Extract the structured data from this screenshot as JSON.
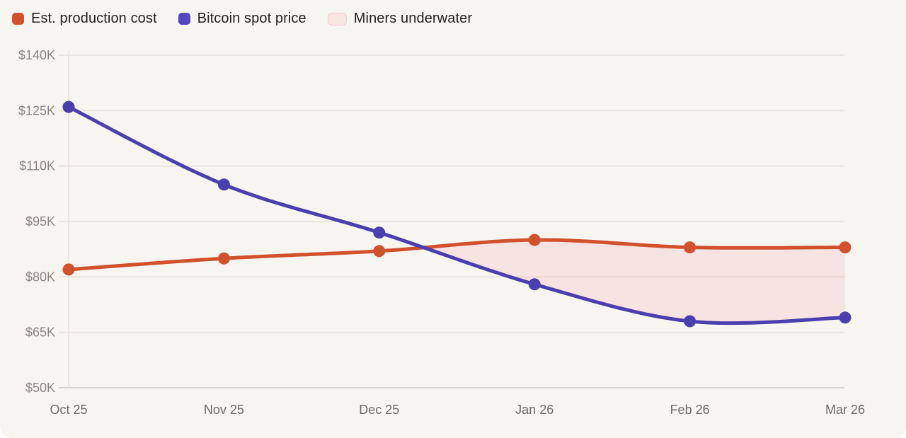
{
  "legend": [
    {
      "label": "Est. production cost",
      "swatch_color": "#d2512d",
      "kind": "series"
    },
    {
      "label": "Bitcoin spot price",
      "swatch_color": "#5447c0",
      "kind": "series"
    },
    {
      "label": "Miners underwater",
      "swatch_color": "#f9e6e3",
      "swatch_border": "#eaccc6",
      "kind": "area"
    }
  ],
  "chart_data": {
    "type": "line",
    "categories": [
      "Oct 25",
      "Nov 25",
      "Dec 25",
      "Jan 26",
      "Feb 26",
      "Mar 26"
    ],
    "series": [
      {
        "name": "Est. production cost",
        "color": "#d2512d",
        "values": [
          82000,
          85000,
          87000,
          90000,
          88000,
          88000
        ]
      },
      {
        "name": "Bitcoin spot price",
        "color": "#4b3eae",
        "values": [
          126000,
          105000,
          92000,
          78000,
          68000,
          69000
        ]
      }
    ],
    "underwater_area": {
      "label": "Miners underwater",
      "fill": "rgba(250,185,192,0.30)",
      "rule": "region between lines where spot price is below production cost"
    },
    "y_ticks": [
      "$140K",
      "$125K",
      "$110K",
      "$95K",
      "$80K",
      "$65K",
      "$50K"
    ],
    "y_tick_values": [
      140000,
      125000,
      110000,
      95000,
      80000,
      65000,
      50000
    ],
    "ylim": [
      50000,
      140000
    ],
    "grid": true,
    "legend_position": "top-left",
    "title": "",
    "xlabel": "",
    "ylabel": ""
  },
  "colors": {
    "background": "#f7f5ef",
    "page": "#ffffff",
    "gridline": "#e9e6df",
    "axis_line": "#d6d3cb",
    "vertical_axis_line": "#e9e6df",
    "y_label_text": "#8a877f",
    "x_label_text": "#6e6b64",
    "legend_text": "#24221e"
  }
}
